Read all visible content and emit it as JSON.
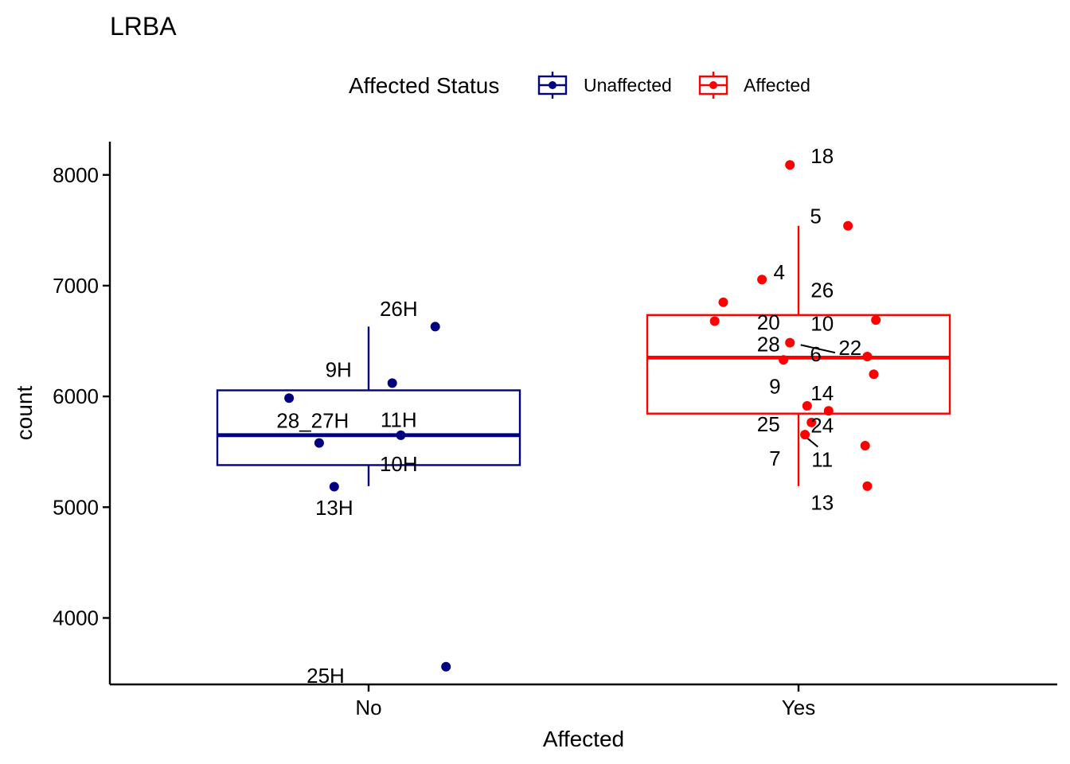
{
  "chart_data": {
    "type": "boxplot",
    "title": "LRBA",
    "xlabel": "Affected",
    "ylabel": "count",
    "categories": [
      "No",
      "Yes"
    ],
    "ylim": [
      3400,
      8300
    ],
    "yticks": [
      4000,
      5000,
      6000,
      7000,
      8000
    ],
    "grid": false,
    "legend": {
      "position": "top",
      "title": "Affected Status",
      "entries": [
        {
          "label": "Unaffected",
          "color": "#000080"
        },
        {
          "label": "Affected",
          "color": "#FF0000"
        }
      ]
    },
    "series": [
      {
        "name": "Unaffected",
        "category": "No",
        "color": "#000080",
        "box": {
          "whisker_low": 5190,
          "q1": 5380,
          "median": 5650,
          "q3": 6055,
          "whisker_high": 6630
        },
        "points": [
          {
            "x": 1.155,
            "y": 6630
          },
          {
            "x": 1.055,
            "y": 6120
          },
          {
            "x": 0.815,
            "y": 5985
          },
          {
            "x": 0.885,
            "y": 5580
          },
          {
            "x": 1.075,
            "y": 5650
          },
          {
            "x": 0.92,
            "y": 5185
          },
          {
            "x": 1.18,
            "y": 3560
          }
        ],
        "labels": [
          {
            "text": "26H",
            "x": 1.07,
            "y": 6790
          },
          {
            "text": "9H",
            "x": 0.93,
            "y": 6240
          },
          {
            "text": "28_27H",
            "x": 0.87,
            "y": 5780
          },
          {
            "text": "11H",
            "x": 1.07,
            "y": 5790
          },
          {
            "text": "10H",
            "x": 1.07,
            "y": 5390
          },
          {
            "text": "13H",
            "x": 0.92,
            "y": 4995
          },
          {
            "text": "25H",
            "x": 0.9,
            "y": 3480
          }
        ]
      },
      {
        "name": "Affected",
        "category": "Yes",
        "color": "#FF0000",
        "box": {
          "whisker_low": 5190,
          "q1": 5845,
          "median": 6350,
          "q3": 6735,
          "whisker_high": 7540
        },
        "points": [
          {
            "x": 1.98,
            "y": 8090
          },
          {
            "x": 2.115,
            "y": 7540
          },
          {
            "x": 1.915,
            "y": 7055
          },
          {
            "x": 1.825,
            "y": 6850
          },
          {
            "x": 1.805,
            "y": 6680
          },
          {
            "x": 2.18,
            "y": 6690
          },
          {
            "x": 1.98,
            "y": 6485
          },
          {
            "x": 2.16,
            "y": 6360
          },
          {
            "x": 1.965,
            "y": 6330
          },
          {
            "x": 2.175,
            "y": 6200
          },
          {
            "x": 2.02,
            "y": 5915
          },
          {
            "x": 2.07,
            "y": 5870
          },
          {
            "x": 2.03,
            "y": 5765
          },
          {
            "x": 2.015,
            "y": 5655
          },
          {
            "x": 2.155,
            "y": 5555
          },
          {
            "x": 2.16,
            "y": 5190
          }
        ],
        "labels": [
          {
            "text": "18",
            "x": 2.055,
            "y": 8170
          },
          {
            "text": "5",
            "x": 2.04,
            "y": 7630
          },
          {
            "text": "4",
            "x": 1.955,
            "y": 7120
          },
          {
            "text": "26",
            "x": 2.055,
            "y": 6960
          },
          {
            "text": "20",
            "x": 1.93,
            "y": 6670
          },
          {
            "text": "10",
            "x": 2.055,
            "y": 6660
          },
          {
            "text": "28",
            "x": 1.93,
            "y": 6470
          },
          {
            "text": "22",
            "x": 2.12,
            "y": 6440
          },
          {
            "text": "6",
            "x": 2.04,
            "y": 6380
          },
          {
            "text": "9",
            "x": 1.945,
            "y": 6090
          },
          {
            "text": "14",
            "x": 2.055,
            "y": 6030
          },
          {
            "text": "25",
            "x": 1.93,
            "y": 5750
          },
          {
            "text": "24",
            "x": 2.055,
            "y": 5740
          },
          {
            "text": "7",
            "x": 1.945,
            "y": 5440
          },
          {
            "text": "11",
            "x": 2.055,
            "y": 5430
          },
          {
            "text": "13",
            "x": 2.055,
            "y": 5040
          }
        ],
        "leader_lines": [
          {
            "from": {
              "x": 2.005,
              "y": 6465
            },
            "to": {
              "x": 2.085,
              "y": 6395
            }
          },
          {
            "from": {
              "x": 2.015,
              "y": 5640
            },
            "to": {
              "x": 2.045,
              "y": 5545
            }
          }
        ]
      }
    ]
  }
}
